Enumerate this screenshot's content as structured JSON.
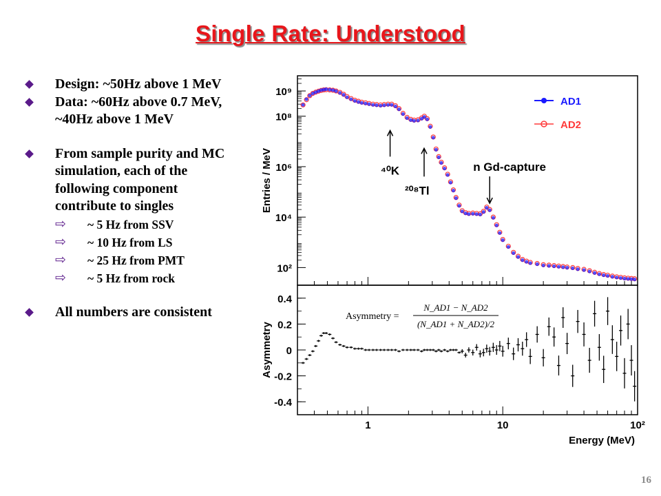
{
  "title": "Single Rate: Understood",
  "bullets": [
    {
      "text": "Design:  ~50Hz above 1 MeV",
      "subs": []
    },
    {
      "text": "Data: ~60Hz above 0.7 MeV, ~40Hz above 1 MeV",
      "subs": []
    },
    {
      "text": "From sample purity and MC simulation, each of the following component contribute to singles",
      "subs": [
        "~ 5 Hz from SSV",
        "~ 10 Hz from LS",
        "~ 25 Hz from PMT",
        "~ 5 Hz from rock"
      ]
    },
    {
      "text": "All numbers are consistent",
      "subs": []
    }
  ],
  "page_number": "16",
  "colors": {
    "title": "#e8161b",
    "bullet": "#5a1a8a",
    "ad1": "#1a1aff",
    "ad2": "#ff3a3a"
  },
  "icons": {
    "bullet": "diamond-bullet-icon",
    "sub_bullet": "hollow-arrow-icon"
  },
  "chart_data": [
    {
      "type": "scatter",
      "xlabel": "",
      "ylabel": "Entries / MeV",
      "x_scale": "log",
      "y_scale": "log",
      "xlim": [
        0.3,
        100
      ],
      "ylim": [
        20,
        4000000000
      ],
      "y_ticks": [
        {
          "v": 100,
          "label": "10²"
        },
        {
          "v": 10000,
          "label": "10⁴"
        },
        {
          "v": 1000000,
          "label": "10⁶"
        },
        {
          "v": 100000000,
          "label": "10⁸"
        },
        {
          "v": 1000000000,
          "label": "10⁹"
        }
      ],
      "legend": [
        "AD1",
        "AD2"
      ],
      "legend_position": "top-right",
      "annotations": [
        {
          "label": "⁴⁰K",
          "x": 1.46,
          "y": 35000000
        },
        {
          "label": "²⁰⁸Tl",
          "x": 2.61,
          "y": 5000000
        },
        {
          "label": "n Gd-capture",
          "x": 8.0,
          "y": 80000
        }
      ],
      "series": [
        {
          "name": "AD1",
          "x": [
            0.33,
            0.35,
            0.37,
            0.39,
            0.41,
            0.43,
            0.45,
            0.47,
            0.49,
            0.52,
            0.55,
            0.58,
            0.62,
            0.66,
            0.7,
            0.75,
            0.8,
            0.85,
            0.9,
            0.96,
            1.02,
            1.09,
            1.16,
            1.24,
            1.32,
            1.41,
            1.5,
            1.6,
            1.7,
            1.82,
            1.95,
            2.08,
            2.2,
            2.35,
            2.5,
            2.62,
            2.75,
            2.9,
            3.05,
            3.2,
            3.35,
            3.5,
            3.7,
            3.9,
            4.1,
            4.3,
            4.5,
            4.75,
            5.0,
            5.3,
            5.6,
            6.0,
            6.4,
            6.8,
            7.2,
            7.6,
            8.0,
            8.5,
            9.0,
            9.5,
            10,
            11,
            12,
            13,
            14,
            15,
            16,
            18,
            20,
            22,
            24,
            26,
            28,
            30,
            33,
            36,
            40,
            44,
            48,
            52,
            56,
            60,
            65,
            70,
            75,
            80,
            85,
            90,
            95
          ],
          "y": [
            300000000,
            500000000,
            700000000,
            850000000,
            950000000,
            1050000000,
            1150000000,
            1200000000,
            1250000000,
            1200000000,
            1150000000,
            1050000000,
            900000000,
            750000000,
            600000000,
            500000000,
            430000000,
            390000000,
            360000000,
            340000000,
            320000000,
            300000000,
            290000000,
            280000000,
            290000000,
            300000000,
            300000000,
            260000000,
            200000000,
            130000000,
            90000000,
            75000000,
            70000000,
            72000000,
            85000000,
            100000000,
            80000000,
            40000000,
            15000000,
            5000000,
            2500000,
            1500000,
            900000,
            500000,
            250000,
            120000,
            60000,
            30000,
            18000,
            15000,
            14000,
            14500,
            14000,
            13500,
            17000,
            25000,
            20000,
            10000,
            5000,
            2500,
            1300,
            700,
            400,
            280,
            210,
            180,
            160,
            145,
            130,
            125,
            120,
            115,
            110,
            105,
            100,
            92,
            85,
            75,
            65,
            58,
            53,
            50,
            46,
            43,
            41,
            39,
            38,
            37,
            36
          ]
        },
        {
          "name": "AD2",
          "x": [
            0.33,
            0.35,
            0.37,
            0.39,
            0.41,
            0.43,
            0.45,
            0.47,
            0.49,
            0.52,
            0.55,
            0.58,
            0.62,
            0.66,
            0.7,
            0.75,
            0.8,
            0.85,
            0.9,
            0.96,
            1.02,
            1.09,
            1.16,
            1.24,
            1.32,
            1.41,
            1.5,
            1.6,
            1.7,
            1.82,
            1.95,
            2.08,
            2.2,
            2.35,
            2.5,
            2.62,
            2.75,
            2.9,
            3.05,
            3.2,
            3.35,
            3.5,
            3.7,
            3.9,
            4.1,
            4.3,
            4.5,
            4.75,
            5.0,
            5.3,
            5.6,
            6.0,
            6.4,
            6.8,
            7.2,
            7.6,
            8.0,
            8.5,
            9.0,
            9.5,
            10,
            11,
            12,
            13,
            14,
            15,
            16,
            18,
            20,
            22,
            24,
            26,
            28,
            30,
            33,
            36,
            40,
            44,
            48,
            52,
            56,
            60,
            65,
            70,
            75,
            80,
            85,
            90,
            95
          ],
          "y": [
            280000000,
            450000000,
            650000000,
            800000000,
            900000000,
            980000000,
            1050000000,
            1100000000,
            1120000000,
            1100000000,
            1070000000,
            1000000000,
            880000000,
            740000000,
            600000000,
            500000000,
            430000000,
            390000000,
            360000000,
            340000000,
            320000000,
            300000000,
            290000000,
            280000000,
            290000000,
            300000000,
            300000000,
            260000000,
            200000000,
            130000000,
            90000000,
            75000000,
            70000000,
            72000000,
            85000000,
            100000000,
            80000000,
            40000000,
            15000000,
            5000000,
            2500000,
            1500000,
            900000,
            500000,
            250000,
            120000,
            60000,
            30000,
            18000,
            15000,
            14000,
            14500,
            14000,
            13500,
            17000,
            25000,
            20000,
            10000,
            5000,
            2500,
            1300,
            700,
            400,
            280,
            210,
            180,
            160,
            145,
            130,
            125,
            120,
            115,
            110,
            105,
            100,
            92,
            85,
            75,
            65,
            58,
            53,
            50,
            46,
            43,
            41,
            39,
            38,
            37,
            36
          ]
        }
      ]
    },
    {
      "type": "scatter",
      "xlabel": "Energy (MeV)",
      "ylabel": "Asymmetry",
      "x_scale": "log",
      "xlim": [
        0.3,
        100
      ],
      "ylim": [
        -0.5,
        0.5
      ],
      "x_ticks": [
        {
          "v": 1,
          "label": "1"
        },
        {
          "v": 10,
          "label": "10"
        },
        {
          "v": 100,
          "label": "10²"
        }
      ],
      "y_ticks": [
        {
          "v": -0.4,
          "label": "-0.4"
        },
        {
          "v": -0.2,
          "label": "-0.2"
        },
        {
          "v": 0,
          "label": "0"
        },
        {
          "v": 0.2,
          "label": "0.2"
        },
        {
          "v": 0.4,
          "label": "0.4"
        }
      ],
      "formula": {
        "lhs": "Asymmetry =",
        "numerator": "N_AD1 − N_AD2",
        "denominator": "(N_AD1 + N_AD2)/2"
      },
      "series": [
        {
          "name": "",
          "x": [
            0.33,
            0.35,
            0.37,
            0.39,
            0.41,
            0.43,
            0.45,
            0.47,
            0.49,
            0.52,
            0.55,
            0.58,
            0.62,
            0.66,
            0.7,
            0.75,
            0.8,
            0.85,
            0.9,
            0.96,
            1.02,
            1.09,
            1.16,
            1.24,
            1.32,
            1.41,
            1.5,
            1.6,
            1.7,
            1.82,
            1.95,
            2.08,
            2.2,
            2.35,
            2.5,
            2.62,
            2.75,
            2.9,
            3.05,
            3.2,
            3.35,
            3.5,
            3.7,
            3.9,
            4.1,
            4.3,
            4.5,
            4.75,
            5.0,
            5.3,
            5.6,
            6.0,
            6.4,
            6.8,
            7.2,
            7.6,
            8.0,
            8.5,
            9.0,
            9.5,
            10,
            11,
            12,
            13,
            14,
            15,
            16,
            18,
            20,
            22,
            24,
            26,
            28,
            30,
            33,
            36,
            40,
            44,
            48,
            52,
            56,
            60,
            65,
            70,
            75,
            80,
            85,
            90,
            95
          ],
          "y": [
            -0.1,
            -0.07,
            -0.04,
            -0.01,
            0.03,
            0.07,
            0.11,
            0.13,
            0.13,
            0.12,
            0.09,
            0.06,
            0.04,
            0.03,
            0.02,
            0.02,
            0.01,
            0.01,
            0.01,
            0.0,
            0.0,
            0.0,
            0.0,
            0.0,
            0.0,
            0.0,
            0.0,
            0.0,
            -0.01,
            0.0,
            0.0,
            0.0,
            0.0,
            0.0,
            -0.01,
            0.0,
            0.0,
            0.0,
            0.0,
            -0.01,
            0.0,
            -0.01,
            0.0,
            -0.01,
            0.0,
            0.0,
            0.0,
            -0.02,
            -0.01,
            -0.04,
            0.0,
            -0.02,
            0.02,
            -0.03,
            -0.02,
            0.01,
            -0.01,
            0.02,
            0.0,
            0.03,
            -0.01,
            0.05,
            -0.03,
            0.04,
            0.01,
            0.08,
            -0.05,
            0.12,
            -0.06,
            0.18,
            0.1,
            -0.12,
            0.25,
            0.05,
            -0.2,
            0.22,
            0.12,
            -0.08,
            0.28,
            0.02,
            -0.15,
            0.3,
            0.08,
            -0.05,
            0.15,
            -0.18,
            0.2,
            -0.08,
            -0.28
          ]
        }
      ]
    }
  ]
}
